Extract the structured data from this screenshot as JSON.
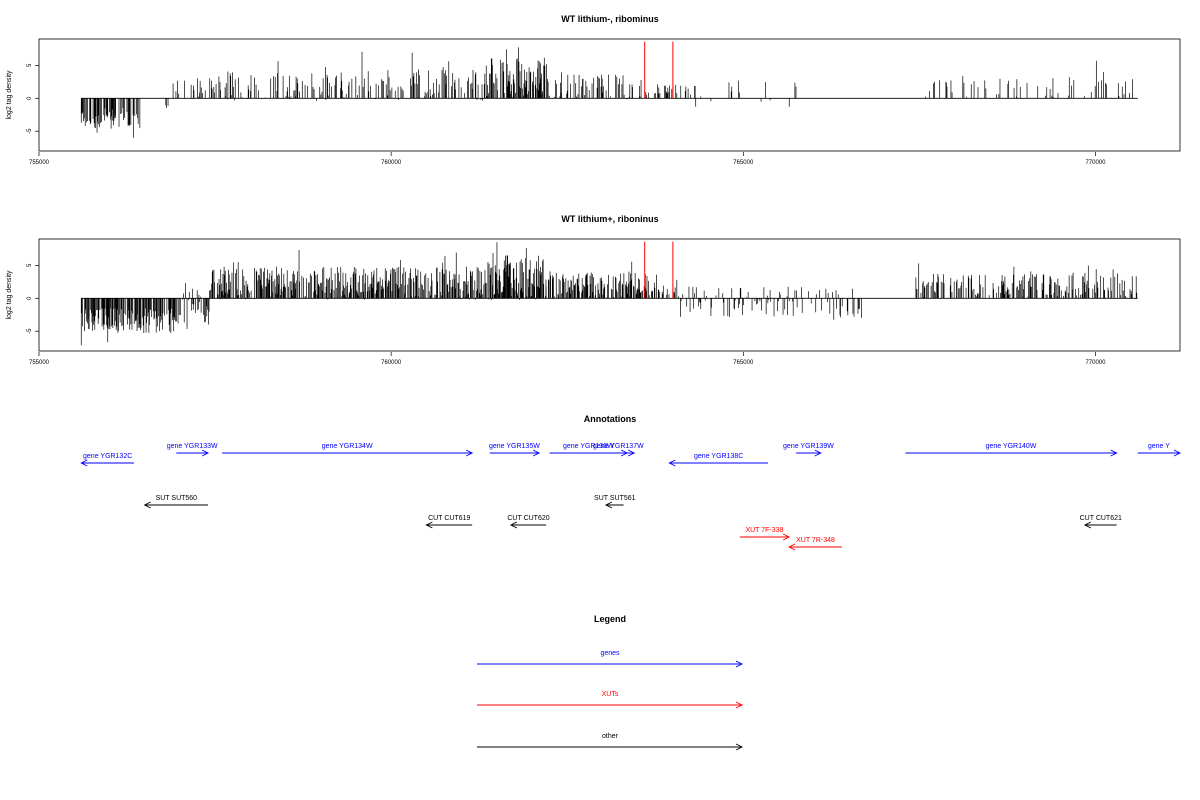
{
  "chart_data": [
    {
      "type": "bar",
      "title": "WT lithium-, ribominus",
      "ylabel": "log2 tag density",
      "xlim": [
        755000,
        771200
      ],
      "ylim": [
        -8,
        9
      ],
      "x_ticks": [
        "755000",
        "760000",
        "765000",
        "770000"
      ],
      "y_ticks": [
        "-5",
        "0",
        "5"
      ],
      "marker_lines": [
        763600,
        764000
      ],
      "marker_color": "#ff0000",
      "segments": [
        {
          "from": 755600,
          "to": 756460,
          "mean": -3.0,
          "amp": 1.6,
          "density": 0.55,
          "seed": 11
        },
        {
          "from": 756460,
          "to": 756800,
          "mean": 0.0,
          "amp": 0.0,
          "density": 0.0,
          "seed": 12
        },
        {
          "from": 756800,
          "to": 756880,
          "mean": -1.0,
          "amp": 0.5,
          "density": 0.25,
          "seed": 13
        },
        {
          "from": 756880,
          "to": 757450,
          "mean": 1.6,
          "amp": 1.5,
          "density": 0.2,
          "seed": 14
        },
        {
          "from": 757450,
          "to": 761350,
          "mean": 2.0,
          "amp": 2.4,
          "density": 0.35,
          "seed": 15
        },
        {
          "from": 761350,
          "to": 762220,
          "mean": 3.4,
          "amp": 3.4,
          "density": 0.7,
          "seed": 16
        },
        {
          "from": 762220,
          "to": 763600,
          "mean": 1.7,
          "amp": 1.9,
          "density": 0.3,
          "seed": 17
        },
        {
          "from": 763600,
          "to": 764300,
          "mean": 1.3,
          "amp": 1.0,
          "density": 0.18,
          "seed": 18
        },
        {
          "from": 764300,
          "to": 765800,
          "mean": 0.3,
          "amp": 2.4,
          "density": 0.06,
          "seed": 19
        },
        {
          "from": 765800,
          "to": 767500,
          "mean": 0.0,
          "amp": 0.0,
          "density": 0.0,
          "seed": 20
        },
        {
          "from": 767500,
          "to": 770600,
          "mean": 1.6,
          "amp": 1.8,
          "density": 0.16,
          "seed": 21
        }
      ]
    },
    {
      "type": "bar",
      "title": "WT lithium+, riboninus",
      "ylabel": "log2 tag density",
      "xlim": [
        755000,
        771200
      ],
      "ylim": [
        -8,
        9
      ],
      "x_ticks": [
        "755000",
        "760000",
        "765000",
        "770000"
      ],
      "y_ticks": [
        "-5",
        "0",
        "5"
      ],
      "marker_lines": [
        763600,
        764000
      ],
      "marker_color": "#ff0000",
      "segments": [
        {
          "from": 755600,
          "to": 756950,
          "mean": -3.4,
          "amp": 1.9,
          "density": 0.75,
          "seed": 31
        },
        {
          "from": 756950,
          "to": 757420,
          "mean": -1.2,
          "amp": 3.6,
          "density": 0.55,
          "seed": 32
        },
        {
          "from": 757420,
          "to": 761350,
          "mean": 2.3,
          "amp": 2.5,
          "density": 0.7,
          "seed": 33
        },
        {
          "from": 761350,
          "to": 762200,
          "mean": 3.3,
          "amp": 3.6,
          "density": 0.85,
          "seed": 34
        },
        {
          "from": 762200,
          "to": 763800,
          "mean": 2.0,
          "amp": 2.1,
          "density": 0.65,
          "seed": 35
        },
        {
          "from": 763800,
          "to": 764100,
          "mean": 1.2,
          "amp": 1.0,
          "density": 0.3,
          "seed": 36
        },
        {
          "from": 764100,
          "to": 766700,
          "mean": -0.6,
          "amp": 2.4,
          "density": 0.3,
          "seed": 37
        },
        {
          "from": 766700,
          "to": 767450,
          "mean": 0.0,
          "amp": 0.0,
          "density": 0.0,
          "seed": 38
        },
        {
          "from": 767450,
          "to": 770600,
          "mean": 1.9,
          "amp": 2.0,
          "density": 0.45,
          "seed": 39
        }
      ]
    }
  ],
  "annotations": {
    "title": "Annotations",
    "features": [
      {
        "label": "gene YGR132C",
        "start": 756350,
        "end": 755600,
        "row": 1,
        "color": "#0000ff"
      },
      {
        "label": "gene YGR133W",
        "start": 756950,
        "end": 757400,
        "row": 0,
        "color": "#0000ff"
      },
      {
        "label": "gene YGR134W",
        "start": 757600,
        "end": 761150,
        "row": 0,
        "color": "#0000ff"
      },
      {
        "label": "gene YGR135W",
        "start": 761400,
        "end": 762100,
        "row": 0,
        "color": "#0000ff"
      },
      {
        "label": "gene YGR136W",
        "start": 762250,
        "end": 763350,
        "row": 0,
        "color": "#0000ff"
      },
      {
        "label": "gene YGR137W",
        "start": 763000,
        "end": 763450,
        "row": 0,
        "color": "#0000ff"
      },
      {
        "label": "gene YGR138C",
        "start": 765350,
        "end": 763950,
        "row": 1,
        "color": "#0000ff"
      },
      {
        "label": "gene YGR139W",
        "start": 765750,
        "end": 766100,
        "row": 0,
        "color": "#0000ff"
      },
      {
        "label": "gene YGR140W",
        "start": 767300,
        "end": 770300,
        "row": 0,
        "color": "#0000ff"
      },
      {
        "label": "gene Y",
        "start": 770600,
        "end": 771200,
        "row": 0,
        "color": "#0000ff"
      },
      {
        "label": "SUT SUT560",
        "start": 757400,
        "end": 756500,
        "row": 2,
        "color": "#000000"
      },
      {
        "label": "SUT SUT561",
        "start": 763300,
        "end": 763050,
        "row": 2,
        "color": "#000000"
      },
      {
        "label": "CUT CUT619",
        "start": 761150,
        "end": 760500,
        "row": 3,
        "color": "#000000"
      },
      {
        "label": "CUT CUT620",
        "start": 762200,
        "end": 761700,
        "row": 3,
        "color": "#000000"
      },
      {
        "label": "CUT CUT621",
        "start": 770300,
        "end": 769850,
        "row": 3,
        "color": "#000000"
      },
      {
        "label": "XUT 7F-338",
        "start": 764950,
        "end": 765650,
        "row": 4,
        "color": "#ff0000"
      },
      {
        "label": "XUT 7R-348",
        "start": 766400,
        "end": 765650,
        "row": 5,
        "color": "#ff0000"
      }
    ]
  },
  "legend": {
    "title": "Legend",
    "items": [
      {
        "label": "genes",
        "color": "#0000ff"
      },
      {
        "label": "XUTs",
        "color": "#ff0000"
      },
      {
        "label": "other",
        "color": "#000000"
      }
    ]
  }
}
